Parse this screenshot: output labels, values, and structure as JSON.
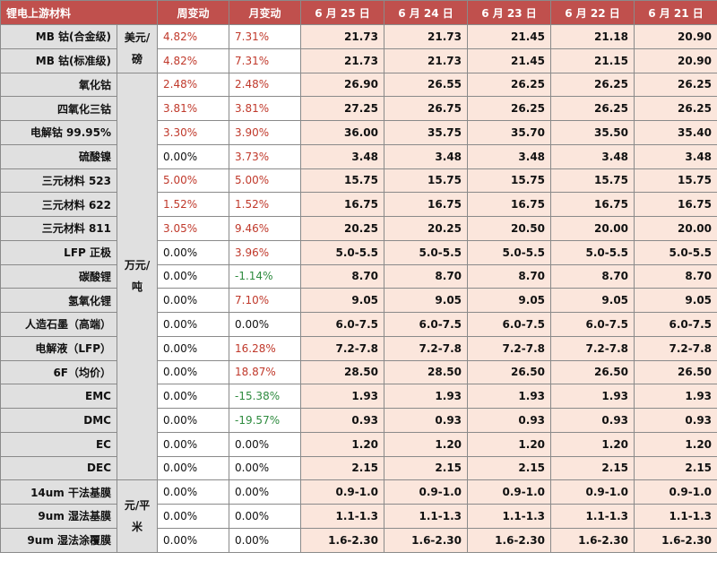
{
  "headers": [
    "锂电上游材料",
    "周变动",
    "月变动",
    "6 月 25 日",
    "6 月 24 日",
    "6 月 23 日",
    "6 月 22 日",
    "6 月 21 日"
  ],
  "units": {
    "usd_lb": "美元/磅",
    "wan_yuan_ton": "万元/吨",
    "yuan_sqm": "元/平米"
  },
  "colors": {
    "header_bg": "#c0504d",
    "name_bg": "#e0e0e0",
    "value_bg": "#fbe6dc",
    "positive": "#c0392b",
    "negative": "#2e8b3f"
  },
  "rows": [
    {
      "name": "MB 钴(合金级)",
      "week": "4.82%",
      "week_color": "red",
      "month": "7.31%",
      "month_color": "red",
      "values": [
        "21.73",
        "21.73",
        "21.45",
        "21.18",
        "20.90"
      ]
    },
    {
      "name": "MB 钴(标准级)",
      "week": "4.82%",
      "week_color": "red",
      "month": "7.31%",
      "month_color": "red",
      "values": [
        "21.73",
        "21.73",
        "21.45",
        "21.15",
        "20.90"
      ]
    },
    {
      "name": "氧化钴",
      "week": "2.48%",
      "week_color": "red",
      "month": "2.48%",
      "month_color": "red",
      "values": [
        "26.90",
        "26.55",
        "26.25",
        "26.25",
        "26.25"
      ]
    },
    {
      "name": "四氧化三钴",
      "week": "3.81%",
      "week_color": "red",
      "month": "3.81%",
      "month_color": "red",
      "values": [
        "27.25",
        "26.75",
        "26.25",
        "26.25",
        "26.25"
      ]
    },
    {
      "name": "电解钴 99.95%",
      "week": "3.30%",
      "week_color": "red",
      "month": "3.90%",
      "month_color": "red",
      "values": [
        "36.00",
        "35.75",
        "35.70",
        "35.50",
        "35.40"
      ]
    },
    {
      "name": "硫酸镍",
      "week": "0.00%",
      "week_color": "black",
      "month": "3.73%",
      "month_color": "red",
      "values": [
        "3.48",
        "3.48",
        "3.48",
        "3.48",
        "3.48"
      ]
    },
    {
      "name": "三元材料 523",
      "week": "5.00%",
      "week_color": "red",
      "month": "5.00%",
      "month_color": "red",
      "values": [
        "15.75",
        "15.75",
        "15.75",
        "15.75",
        "15.75"
      ]
    },
    {
      "name": "三元材料 622",
      "week": "1.52%",
      "week_color": "red",
      "month": "1.52%",
      "month_color": "red",
      "values": [
        "16.75",
        "16.75",
        "16.75",
        "16.75",
        "16.75"
      ]
    },
    {
      "name": "三元材料 811",
      "week": "3.05%",
      "week_color": "red",
      "month": "9.46%",
      "month_color": "red",
      "values": [
        "20.25",
        "20.25",
        "20.50",
        "20.00",
        "20.00"
      ]
    },
    {
      "name": "LFP 正极",
      "week": "0.00%",
      "week_color": "black",
      "month": "3.96%",
      "month_color": "red",
      "values": [
        "5.0-5.5",
        "5.0-5.5",
        "5.0-5.5",
        "5.0-5.5",
        "5.0-5.5"
      ]
    },
    {
      "name": "碳酸锂",
      "week": "0.00%",
      "week_color": "black",
      "month": "-1.14%",
      "month_color": "green",
      "values": [
        "8.70",
        "8.70",
        "8.70",
        "8.70",
        "8.70"
      ]
    },
    {
      "name": "氢氧化锂",
      "week": "0.00%",
      "week_color": "black",
      "month": "7.10%",
      "month_color": "red",
      "values": [
        "9.05",
        "9.05",
        "9.05",
        "9.05",
        "9.05"
      ]
    },
    {
      "name": "人造石墨（高端）",
      "week": "0.00%",
      "week_color": "black",
      "month": "0.00%",
      "month_color": "black",
      "values": [
        "6.0-7.5",
        "6.0-7.5",
        "6.0-7.5",
        "6.0-7.5",
        "6.0-7.5"
      ]
    },
    {
      "name": "电解液（LFP）",
      "week": "0.00%",
      "week_color": "black",
      "month": "16.28%",
      "month_color": "red",
      "values": [
        "7.2-7.8",
        "7.2-7.8",
        "7.2-7.8",
        "7.2-7.8",
        "7.2-7.8"
      ]
    },
    {
      "name": "6F（均价）",
      "week": "0.00%",
      "week_color": "black",
      "month": "18.87%",
      "month_color": "red",
      "values": [
        "28.50",
        "28.50",
        "26.50",
        "26.50",
        "26.50"
      ]
    },
    {
      "name": "EMC",
      "week": "0.00%",
      "week_color": "black",
      "month": "-15.38%",
      "month_color": "green",
      "values": [
        "1.93",
        "1.93",
        "1.93",
        "1.93",
        "1.93"
      ]
    },
    {
      "name": "DMC",
      "week": "0.00%",
      "week_color": "black",
      "month": "-19.57%",
      "month_color": "green",
      "values": [
        "0.93",
        "0.93",
        "0.93",
        "0.93",
        "0.93"
      ]
    },
    {
      "name": "EC",
      "week": "0.00%",
      "week_color": "black",
      "month": "0.00%",
      "month_color": "black",
      "values": [
        "1.20",
        "1.20",
        "1.20",
        "1.20",
        "1.20"
      ]
    },
    {
      "name": "DEC",
      "week": "0.00%",
      "week_color": "black",
      "month": "0.00%",
      "month_color": "black",
      "values": [
        "2.15",
        "2.15",
        "2.15",
        "2.15",
        "2.15"
      ]
    },
    {
      "name": "14um 干法基膜",
      "week": "0.00%",
      "week_color": "black",
      "month": "0.00%",
      "month_color": "black",
      "values": [
        "0.9-1.0",
        "0.9-1.0",
        "0.9-1.0",
        "0.9-1.0",
        "0.9-1.0"
      ]
    },
    {
      "name": "9um 湿法基膜",
      "week": "0.00%",
      "week_color": "black",
      "month": "0.00%",
      "month_color": "black",
      "values": [
        "1.1-1.3",
        "1.1-1.3",
        "1.1-1.3",
        "1.1-1.3",
        "1.1-1.3"
      ]
    },
    {
      "name": "9um 湿法涂覆膜",
      "week": "0.00%",
      "week_color": "black",
      "month": "0.00%",
      "month_color": "black",
      "values": [
        "1.6-2.30",
        "1.6-2.30",
        "1.6-2.30",
        "1.6-2.30",
        "1.6-2.30"
      ]
    }
  ]
}
